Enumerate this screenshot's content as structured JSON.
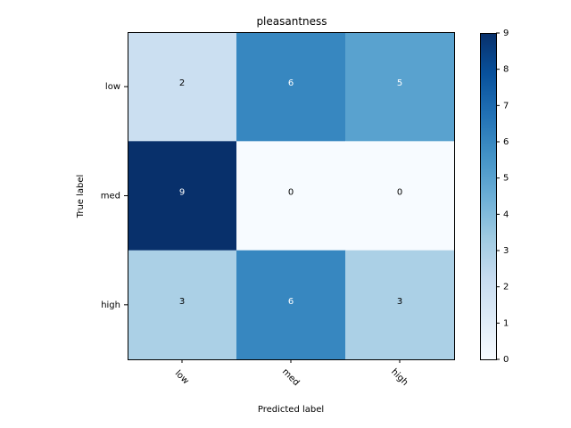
{
  "chart_data": {
    "type": "heatmap",
    "title": "pleasantness",
    "xlabel": "Predicted label",
    "ylabel": "True label",
    "x_categories": [
      "low",
      "med",
      "high"
    ],
    "y_categories": [
      "low",
      "med",
      "high"
    ],
    "values": [
      [
        2,
        6,
        5
      ],
      [
        9,
        0,
        0
      ],
      [
        3,
        6,
        3
      ]
    ],
    "colormap": "Blues",
    "colorbar": {
      "min": 0,
      "max": 9,
      "ticks": [
        "0",
        "1",
        "2",
        "3",
        "4",
        "5",
        "6",
        "7",
        "8",
        "9"
      ]
    },
    "x_tick_rotation": 45,
    "grid": false
  }
}
